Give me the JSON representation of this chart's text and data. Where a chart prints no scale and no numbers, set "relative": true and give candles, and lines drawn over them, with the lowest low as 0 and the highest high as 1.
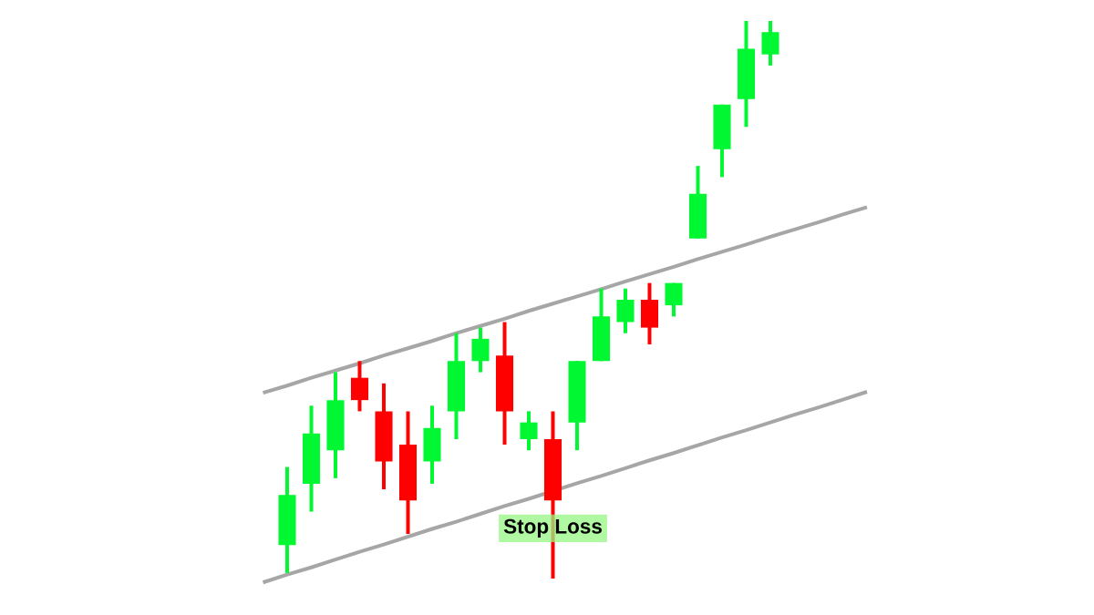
{
  "chart_data": {
    "type": "candlestick",
    "relative": true,
    "categories": [
      null,
      null,
      null,
      null,
      null,
      null,
      null,
      null,
      null,
      null,
      null,
      null,
      null,
      null,
      null,
      null,
      null,
      null,
      null,
      null,
      null,
      null,
      null,
      null,
      null,
      null
    ],
    "ohlc": [
      null,
      [
        0.06,
        0.2,
        0.01,
        0.15
      ],
      [
        0.17,
        0.31,
        0.12,
        0.26
      ],
      [
        0.23,
        0.37,
        0.18,
        0.32
      ],
      [
        0.36,
        0.39,
        0.3,
        0.32
      ],
      [
        0.3,
        0.35,
        0.16,
        0.21
      ],
      [
        0.24,
        0.3,
        0.08,
        0.14
      ],
      [
        0.21,
        0.31,
        0.17,
        0.27
      ],
      [
        0.3,
        0.44,
        0.25,
        0.39
      ],
      [
        0.39,
        0.45,
        0.37,
        0.43
      ],
      [
        0.4,
        0.46,
        0.24,
        0.3
      ],
      [
        0.25,
        0.3,
        0.23,
        0.28
      ],
      [
        0.25,
        0.3,
        0.0,
        0.14
      ],
      [
        0.28,
        0.39,
        0.23,
        0.39
      ],
      [
        0.39,
        0.52,
        0.39,
        0.47
      ],
      [
        0.46,
        0.52,
        0.44,
        0.5
      ],
      [
        0.5,
        0.53,
        0.42,
        0.45
      ],
      [
        0.49,
        0.53,
        0.47,
        0.53
      ],
      [
        0.61,
        0.74,
        0.61,
        0.69
      ],
      [
        0.77,
        0.85,
        0.72,
        0.85
      ],
      [
        0.86,
        1.0,
        0.81,
        0.95
      ],
      [
        0.94,
        1.0,
        0.92,
        0.98
      ],
      null,
      null,
      null,
      null
    ],
    "colors": [
      null,
      "#00f731",
      "#00f731",
      "#00f731",
      "#ff0000",
      "#ff0000",
      "#ff0000",
      "#00f731",
      "#00f731",
      "#00f731",
      "#ff0000",
      "#00f731",
      "#ff0000",
      "#00f731",
      "#00f731",
      "#00f731",
      "#ff0000",
      "#00f731",
      "#00f731",
      "#00f731",
      "#00f731",
      "#00f731",
      null,
      null,
      null,
      null
    ],
    "series": [
      {
        "type": "line",
        "color": "#a6a6a6",
        "values": [
          0.333,
          0.346,
          0.36,
          0.373,
          0.386,
          0.4,
          0.413,
          0.426,
          0.44,
          0.453,
          0.466,
          0.48,
          0.493,
          0.506,
          0.519,
          0.533,
          0.546,
          0.559,
          0.573,
          0.586,
          0.599,
          0.613,
          0.626,
          0.639,
          0.653,
          0.666
        ]
      },
      {
        "type": "line",
        "color": "#a6a6a6",
        "values": [
          -0.007,
          0.007,
          0.02,
          0.034,
          0.048,
          0.061,
          0.075,
          0.089,
          0.102,
          0.116,
          0.13,
          0.143,
          null,
          0.171,
          0.184,
          0.198,
          0.212,
          0.225,
          0.239,
          0.253,
          0.266,
          0.28,
          0.294,
          0.307,
          0.321,
          0.335
        ]
      }
    ],
    "annotations": [
      {
        "text": "Stop Loss",
        "y": 0.09
      }
    ]
  }
}
